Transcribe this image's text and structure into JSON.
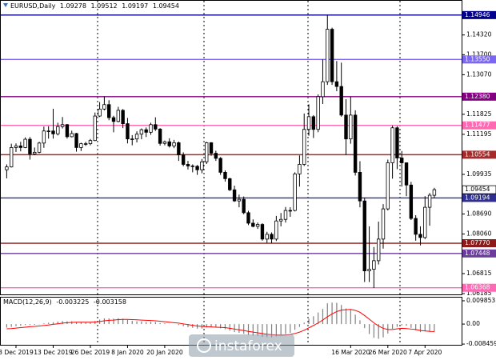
{
  "header": {
    "symbol": "EURUSD,Daily"
  },
  "chart_data": {
    "type": "candlestick",
    "categories": [
      null,
      null,
      "3 Dec 2019",
      null,
      null,
      null,
      null,
      null,
      null,
      null,
      "13 Dec 2019",
      null,
      null,
      null,
      null,
      null,
      null,
      null,
      "26 Dec 2019",
      null,
      null,
      null,
      null,
      null,
      null,
      null,
      "8 Jan 2020",
      null,
      null,
      null,
      null,
      null,
      null,
      null,
      "20 Jan 2020",
      null,
      null,
      null,
      null,
      null,
      null,
      null,
      null,
      null,
      null,
      null,
      null,
      null,
      null,
      null,
      null,
      null,
      null,
      null,
      null,
      null,
      null,
      null,
      null,
      null,
      null,
      null,
      null,
      null,
      null,
      null,
      null,
      null,
      null,
      null,
      null,
      null,
      null,
      null,
      "16 Mar 2020",
      null,
      null,
      null,
      null,
      null,
      null,
      null,
      "26 Mar 2020",
      null,
      null,
      null,
      null,
      null,
      null,
      null,
      "7 Apr 2020",
      null,
      null
    ],
    "candles": [
      [
        1.1008,
        1.1025,
        1.0981,
        1.1017
      ],
      [
        1.1017,
        1.109,
        1.1015,
        1.1078
      ],
      [
        1.1078,
        1.1091,
        1.1064,
        1.1083
      ],
      [
        1.1083,
        1.1096,
        1.1066,
        1.1078
      ],
      [
        1.1078,
        1.111,
        1.1076,
        1.1104
      ],
      [
        1.1104,
        1.1111,
        1.104,
        1.1058
      ],
      [
        1.1058,
        1.1078,
        1.1055,
        1.1063
      ],
      [
        1.1063,
        1.1096,
        1.106,
        1.1092
      ],
      [
        1.1092,
        1.1144,
        1.1077,
        1.113
      ],
      [
        1.113,
        1.1145,
        1.1106,
        1.113
      ],
      [
        1.113,
        1.12,
        1.1106,
        1.1121
      ],
      [
        1.1121,
        1.1156,
        1.1116,
        1.1144
      ],
      [
        1.1144,
        1.1174,
        1.1138,
        1.115
      ],
      [
        1.115,
        1.1152,
        1.1106,
        1.1112
      ],
      [
        1.1112,
        1.1131,
        1.111,
        1.1122
      ],
      [
        1.1122,
        1.1124,
        1.1065,
        1.1078
      ],
      [
        1.1078,
        1.1093,
        1.1067,
        1.109
      ],
      [
        1.109,
        1.1096,
        1.1083,
        1.109
      ],
      [
        1.109,
        1.1105,
        1.1085,
        1.11
      ],
      [
        1.11,
        1.1188,
        1.1098,
        1.1177
      ],
      [
        1.1177,
        1.1221,
        1.1174,
        1.1199
      ],
      [
        1.1199,
        1.1239,
        1.1195,
        1.1213
      ],
      [
        1.1213,
        1.1227,
        1.1164,
        1.1172
      ],
      [
        1.1172,
        1.1178,
        1.1126,
        1.116
      ],
      [
        1.116,
        1.1206,
        1.1157,
        1.1195
      ],
      [
        1.1195,
        1.1199,
        1.1139,
        1.1153
      ],
      [
        1.1153,
        1.1171,
        1.1091,
        1.1105
      ],
      [
        1.1105,
        1.1117,
        1.1085,
        1.1105
      ],
      [
        1.1105,
        1.1129,
        1.1094,
        1.112
      ],
      [
        1.112,
        1.1138,
        1.1104,
        1.1134
      ],
      [
        1.1134,
        1.1141,
        1.1111,
        1.1126
      ],
      [
        1.1126,
        1.1156,
        1.1118,
        1.115
      ],
      [
        1.115,
        1.1173,
        1.113,
        1.1136
      ],
      [
        1.1136,
        1.1139,
        1.1084,
        1.1091
      ],
      [
        1.1091,
        1.11,
        1.1085,
        1.1096
      ],
      [
        1.1096,
        1.1107,
        1.1078,
        1.1083
      ],
      [
        1.1083,
        1.1102,
        1.1076,
        1.1093
      ],
      [
        1.1093,
        1.1097,
        1.1036,
        1.1055
      ],
      [
        1.1055,
        1.1063,
        1.1019,
        1.1025
      ],
      [
        1.1025,
        1.1036,
        1.1009,
        1.102
      ],
      [
        1.102,
        1.1025,
        1.1,
        1.1019
      ],
      [
        1.1019,
        1.1023,
        1.0992,
        1.1008
      ],
      [
        1.1008,
        1.1042,
        1.0997,
        1.1033
      ],
      [
        1.1033,
        1.1096,
        1.1026,
        1.1093
      ],
      [
        1.1093,
        1.1095,
        1.1052,
        1.106
      ],
      [
        1.106,
        1.1068,
        1.1036,
        1.1044
      ],
      [
        1.1044,
        1.1048,
        1.0992,
        1.1
      ],
      [
        1.1,
        1.1006,
        1.0971,
        1.098
      ],
      [
        1.098,
        1.0983,
        1.0941,
        1.0945
      ],
      [
        1.0945,
        1.0958,
        1.0907,
        1.091
      ],
      [
        1.091,
        1.093,
        1.089,
        1.0915
      ],
      [
        1.0915,
        1.0924,
        1.0868,
        1.0873
      ],
      [
        1.0873,
        1.0879,
        1.0834,
        1.084
      ],
      [
        1.084,
        1.0852,
        1.0827,
        1.083
      ],
      [
        1.083,
        1.0842,
        1.0822,
        1.0836
      ],
      [
        1.0836,
        1.084,
        1.0785,
        1.079
      ],
      [
        1.079,
        1.0813,
        1.0778,
        1.0805
      ],
      [
        1.0805,
        1.0811,
        1.0777,
        1.079
      ],
      [
        1.079,
        1.0863,
        1.0784,
        1.0847
      ],
      [
        1.0847,
        1.0872,
        1.083,
        1.0852
      ],
      [
        1.0852,
        1.0891,
        1.0842,
        1.088
      ],
      [
        1.088,
        1.089,
        1.086,
        1.088
      ],
      [
        1.088,
        1.1,
        1.0877,
        1.0995
      ],
      [
        1.0995,
        1.1053,
        1.0955,
        1.1025
      ],
      [
        1.1025,
        1.1185,
        1.102,
        1.1135
      ],
      [
        1.1135,
        1.1214,
        1.1115,
        1.1175
      ],
      [
        1.1175,
        1.118,
        1.1108,
        1.1135
      ],
      [
        1.1135,
        1.1245,
        1.1126,
        1.1238
      ],
      [
        1.1238,
        1.1355,
        1.1215,
        1.1285
      ],
      [
        1.1285,
        1.1495,
        1.1275,
        1.145
      ],
      [
        1.145,
        1.1455,
        1.1275,
        1.1285
      ],
      [
        1.1285,
        1.135,
        1.1255,
        1.127
      ],
      [
        1.127,
        1.1345,
        1.1175,
        1.118
      ],
      [
        1.118,
        1.123,
        1.1055,
        1.1105
      ],
      [
        1.1105,
        1.1238,
        1.109,
        1.118
      ],
      [
        1.118,
        1.1195,
        1.099,
        1.1
      ],
      [
        1.1,
        1.1035,
        1.089,
        1.091
      ],
      [
        1.091,
        1.092,
        1.0655,
        1.069
      ],
      [
        1.069,
        1.083,
        1.0655,
        1.0695
      ],
      [
        1.0695,
        1.0765,
        1.0636,
        1.0722
      ],
      [
        1.0722,
        1.0845,
        1.071,
        1.079
      ],
      [
        1.079,
        1.09,
        1.076,
        1.0885
      ],
      [
        1.0885,
        1.104,
        1.088,
        1.103
      ],
      [
        1.103,
        1.1147,
        1.098,
        1.114
      ],
      [
        1.114,
        1.1145,
        1.101,
        1.1045
      ],
      [
        1.1045,
        1.1067,
        1.0955,
        1.103
      ],
      [
        1.103,
        1.103,
        1.0925,
        1.096
      ],
      [
        1.096,
        1.097,
        1.085,
        1.0855
      ],
      [
        1.0855,
        1.0865,
        1.0785,
        1.0805
      ],
      [
        1.0805,
        1.083,
        1.077,
        1.0795
      ],
      [
        1.0795,
        1.0925,
        1.079,
        1.089
      ],
      [
        1.089,
        1.0935,
        1.0832,
        1.0928
      ],
      [
        1.09278,
        1.09512,
        1.09197,
        1.09454
      ]
    ],
    "up_color": "#ffffff",
    "down_color": "#000000",
    "ylim": [
      1.0616,
      1.1537
    ],
    "yticks": [
      {
        "value": 1.1432,
        "label": "1.14320"
      },
      {
        "value": 1.137,
        "label": "1.13700"
      },
      {
        "value": 1.1307,
        "label": "1.13070"
      },
      1.11825,
      1.11195,
      1.09935,
      {
        "value": 1.0869,
        "label": "1.08690"
      },
      {
        "value": 1.0806,
        "label": "1.08060"
      },
      1.06815,
      1.06185
    ],
    "levels": [
      {
        "value": 1.14946,
        "color": "#00008b"
      },
      {
        "value": 1.1355,
        "label": "1.13550",
        "color": "#7b68ee"
      },
      {
        "value": 1.1238,
        "label": "1.12380",
        "color": "#800080"
      },
      {
        "value": 1.11477,
        "color": "#ff69b4"
      },
      {
        "value": 1.10554,
        "color": "#a52a2a"
      },
      {
        "value": 1.09194,
        "color": "#2f2f8f"
      },
      {
        "value": 1.0777,
        "label": "1.07770",
        "color": "#8b1a1a"
      },
      {
        "value": 1.07448,
        "color": "#6a3d9a"
      },
      {
        "value": 1.06368,
        "color": "#ff69b4"
      }
    ],
    "macd": {
      "label": "MACD(12,26,9)",
      "values": [
        -0.0015,
        -0.0012,
        -0.0009,
        -0.0007,
        -0.0004,
        -0.0004,
        -0.0003,
        -0.0001,
        0.0003,
        0.0006,
        0.0008,
        0.0011,
        0.0013,
        0.0012,
        0.0012,
        0.0009,
        0.0008,
        0.0007,
        0.0007,
        0.0013,
        0.0019,
        0.0024,
        0.0024,
        0.0023,
        0.0025,
        0.0023,
        0.0018,
        0.0014,
        0.0012,
        0.0011,
        0.0009,
        0.001,
        0.0009,
        0.0005,
        0.0003,
        0.0001,
        0,
        -0.0004,
        -0.0009,
        -0.0013,
        -0.0016,
        -0.0019,
        -0.0019,
        -0.0014,
        -0.0013,
        -0.0014,
        -0.0018,
        -0.0022,
        -0.0028,
        -0.0034,
        -0.0037,
        -0.0041,
        -0.0046,
        -0.0049,
        -0.005,
        -0.0054,
        -0.0055,
        -0.0056,
        -0.0052,
        -0.0048,
        -0.0042,
        -0.0037,
        -0.0024,
        -0.0012,
        0.0006,
        0.0023,
        0.0033,
        0.0049,
        0.0064,
        0.0088,
        0.0091,
        0.009,
        0.0081,
        0.0066,
        0.006,
        0.004,
        0.0016,
        -0.0017,
        -0.0042,
        -0.0058,
        -0.0062,
        -0.0056,
        -0.004,
        -0.002,
        -0.0012,
        -0.0006,
        -0.0007,
        -0.0016,
        -0.0026,
        -0.0034,
        -0.0031,
        -0.003,
        -0.003225
      ],
      "signal": [
        -0.002,
        -0.0019,
        -0.0017,
        -0.0015,
        -0.0013,
        -0.0011,
        -0.001,
        -0.0008,
        -0.0006,
        -0.0004,
        -0.0001,
        0.0001,
        0.0004,
        0.0006,
        0.0007,
        0.0008,
        0.0008,
        0.0008,
        0.0008,
        0.0009,
        0.0011,
        0.0014,
        0.0016,
        0.0017,
        0.0019,
        0.002,
        0.002,
        0.0019,
        0.0018,
        0.0017,
        0.0016,
        0.0015,
        0.0014,
        0.0012,
        0.001,
        0.0008,
        0.0006,
        0.0004,
        0.0001,
        -0.0002,
        -0.0005,
        -0.0008,
        -0.001,
        -0.0011,
        -0.0012,
        -0.0013,
        -0.0014,
        -0.0015,
        -0.0018,
        -0.0021,
        -0.0024,
        -0.0027,
        -0.0031,
        -0.0034,
        -0.0037,
        -0.004,
        -0.0043,
        -0.0045,
        -0.0046,
        -0.0047,
        -0.0046,
        -0.0044,
        -0.004,
        -0.0034,
        -0.0026,
        -0.0016,
        -0.0006,
        0.0005,
        0.0017,
        0.0031,
        0.0043,
        0.0053,
        0.0059,
        0.0061,
        0.0062,
        0.0058,
        0.005,
        0.0036,
        0.0021,
        0.0005,
        -0.0008,
        -0.0018,
        -0.0023,
        -0.0023,
        -0.002,
        -0.0018,
        -0.0019,
        -0.0021,
        -0.0023,
        -0.0027,
        -0.0029,
        -0.0031,
        -0.003158
      ],
      "bar_color": "#808080",
      "signal_color": "#ff0000",
      "ylim": [
        -0.0091,
        0.0112
      ],
      "yticks": [
        0.009853,
        {
          "value": 0,
          "label": "0.00"
        },
        -0.008459
      ]
    },
    "watermark": "instaforex"
  }
}
